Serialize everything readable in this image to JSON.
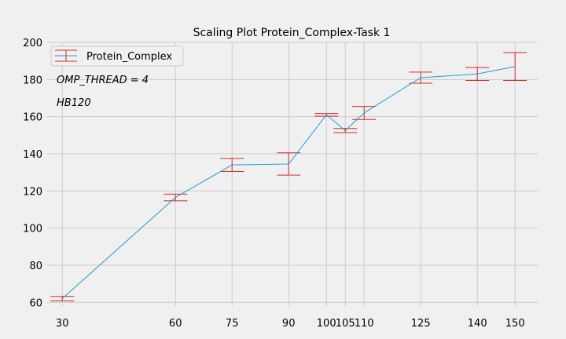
{
  "colors": {
    "background": "#f0f0f0",
    "grid": "#cbcbcb",
    "line": "#1f9bd7",
    "errorbar": "#d62728"
  },
  "chart_data": {
    "type": "line",
    "title": "Scaling Plot Protein_Complex-Task 1",
    "xlabel": "",
    "ylabel": "",
    "x_ticks": [
      30,
      60,
      75,
      90,
      100,
      105,
      110,
      125,
      140,
      150
    ],
    "y_ticks": [
      60,
      80,
      100,
      120,
      140,
      160,
      180,
      200
    ],
    "xlim": [
      26,
      156
    ],
    "ylim": [
      58,
      200
    ],
    "grid": true,
    "legend_position": "top-left",
    "annotations": [
      "OMP_THREAD = 4",
      "HB120"
    ],
    "series": [
      {
        "name": "Protein_Complex",
        "x": [
          30,
          60,
          75,
          90,
          100,
          105,
          110,
          125,
          140,
          150
        ],
        "y": [
          62,
          116.5,
          134,
          134.5,
          161,
          152.5,
          162,
          181,
          183,
          187
        ],
        "err": [
          1.2,
          1.8,
          3.5,
          6,
          0.7,
          1.1,
          3.5,
          3,
          3.5,
          7.5
        ]
      }
    ]
  }
}
